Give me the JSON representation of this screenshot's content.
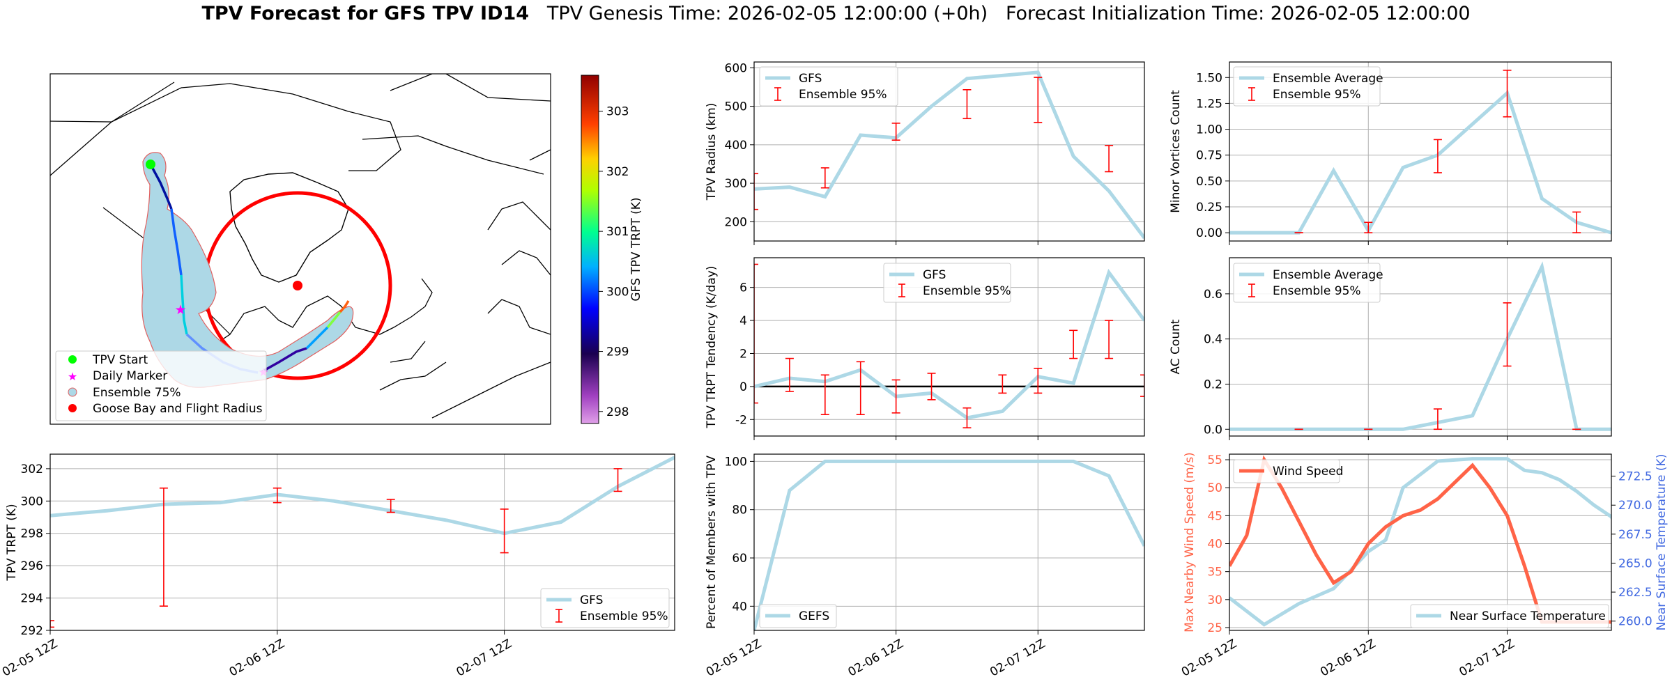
{
  "title": {
    "bold": "TPV Forecast for GFS TPV ID14",
    "genesis": "TPV Genesis Time: 2026-02-05 12:00:00 (+0h)",
    "init": "Forecast Initialization Time: 2026-02-05 12:00:00"
  },
  "colors": {
    "gfs_line": "#add8e6",
    "ensemble_err": "#ff0000",
    "wind": "#ff6347",
    "temp_axis": "#4169e1",
    "goose": "#ff0000",
    "tpv_start": "#00ff00",
    "daily_marker": "#ff00ff",
    "ensemble_fill": "#add8e6"
  },
  "map": {
    "legend": [
      "TPV Start",
      "Daily Marker",
      "Ensemble 75%",
      "Goose Bay and Flight Radius"
    ],
    "colorbar": {
      "label": "GFS TPV TRPT (K)",
      "ticks": [
        298,
        299,
        300,
        301,
        302,
        303
      ],
      "range": [
        297.8,
        303.6
      ]
    }
  },
  "chart_data": [
    {
      "id": "radius",
      "type": "line",
      "ylabel": "TPV Radius (km)",
      "legend": [
        "GFS",
        "Ensemble 95%"
      ],
      "x": [
        0,
        0.25,
        0.5,
        0.75,
        1,
        1.25,
        1.5,
        1.75,
        2,
        2.25,
        2.5,
        2.75
      ],
      "values": [
        285,
        290,
        265,
        425,
        418,
        500,
        572,
        580,
        588,
        370,
        280,
        158
      ],
      "errorbars": [
        {
          "x": 0,
          "lo": 232,
          "hi": 325
        },
        {
          "x": 0.5,
          "lo": 288,
          "hi": 340
        },
        {
          "x": 1,
          "lo": 412,
          "hi": 456
        },
        {
          "x": 1.5,
          "lo": 468,
          "hi": 543
        },
        {
          "x": 2,
          "lo": 458,
          "hi": 575
        },
        {
          "x": 2.5,
          "lo": 330,
          "hi": 398
        }
      ],
      "ylim": [
        150,
        615
      ],
      "yticks": [
        200,
        300,
        400,
        500,
        600
      ]
    },
    {
      "id": "minor",
      "type": "line",
      "ylabel": "Minor Vortices Count",
      "legend": [
        "Ensemble Average",
        "Ensemble 95%"
      ],
      "x": [
        0,
        0.25,
        0.5,
        0.75,
        1,
        1.25,
        1.5,
        1.75,
        2,
        2.25,
        2.5,
        2.75
      ],
      "values": [
        0,
        0,
        0,
        0.6,
        0.02,
        0.63,
        0.75,
        1.05,
        1.35,
        0.33,
        0.1,
        0
      ],
      "errorbars": [
        {
          "x": 0.5,
          "lo": 0,
          "hi": 0
        },
        {
          "x": 1,
          "lo": 0,
          "hi": 0.1
        },
        {
          "x": 1.5,
          "lo": 0.58,
          "hi": 0.9
        },
        {
          "x": 2,
          "lo": 1.12,
          "hi": 1.57
        },
        {
          "x": 2.5,
          "lo": 0,
          "hi": 0.2
        }
      ],
      "ylim": [
        -0.08,
        1.65
      ],
      "yticks": [
        0,
        0.25,
        0.5,
        0.75,
        1,
        1.25,
        1.5
      ],
      "yticklabels": [
        "0.00",
        "0.25",
        "0.50",
        "0.75",
        "1.00",
        "1.25",
        "1.50"
      ]
    },
    {
      "id": "tendency",
      "type": "line",
      "ylabel": "TPV TRPT Tendency (K/day)",
      "legend": [
        "GFS",
        "Ensemble 95%"
      ],
      "x": [
        0,
        0.25,
        0.5,
        0.75,
        1,
        1.25,
        1.5,
        1.75,
        2,
        2.25,
        2.5,
        2.75
      ],
      "values": [
        0,
        0.5,
        0.3,
        1.0,
        -0.6,
        -0.4,
        -1.9,
        -1.5,
        0.6,
        0.2,
        6.9,
        4.0
      ],
      "errorbars": [
        {
          "x": 0,
          "lo": -1.0,
          "hi": 7.4
        },
        {
          "x": 0.25,
          "lo": -0.3,
          "hi": 1.7
        },
        {
          "x": 0.5,
          "lo": -1.7,
          "hi": 0.7
        },
        {
          "x": 0.75,
          "lo": -1.7,
          "hi": 1.5
        },
        {
          "x": 1,
          "lo": -1.6,
          "hi": 0.4
        },
        {
          "x": 1.25,
          "lo": -0.8,
          "hi": 0.8
        },
        {
          "x": 1.5,
          "lo": -2.5,
          "hi": -1.3
        },
        {
          "x": 1.75,
          "lo": -0.4,
          "hi": 0.7
        },
        {
          "x": 2,
          "lo": -0.4,
          "hi": 1.1
        },
        {
          "x": 2.25,
          "lo": 1.7,
          "hi": 3.4
        },
        {
          "x": 2.5,
          "lo": 1.7,
          "hi": 4.0
        },
        {
          "x": 2.75,
          "lo": -0.6,
          "hi": 0.7
        }
      ],
      "ylim": [
        -3.0,
        7.8
      ],
      "yticks": [
        -2,
        0,
        2,
        4,
        6
      ],
      "zero_line": true
    },
    {
      "id": "ac",
      "type": "line",
      "ylabel": "AC Count",
      "legend": [
        "Ensemble Average",
        "Ensemble 95%"
      ],
      "x": [
        0,
        0.25,
        0.5,
        0.75,
        1,
        1.25,
        1.5,
        1.75,
        2,
        2.25,
        2.5,
        2.75
      ],
      "values": [
        0,
        0,
        0,
        0,
        0,
        0,
        0.03,
        0.06,
        0.4,
        0.72,
        0,
        0
      ],
      "errorbars": [
        {
          "x": 0.5,
          "lo": 0,
          "hi": 0
        },
        {
          "x": 1,
          "lo": 0,
          "hi": 0
        },
        {
          "x": 1.5,
          "lo": 0,
          "hi": 0.09
        },
        {
          "x": 2,
          "lo": 0.28,
          "hi": 0.56
        },
        {
          "x": 2.5,
          "lo": 0,
          "hi": 0
        }
      ],
      "ylim": [
        -0.03,
        0.76
      ],
      "yticks": [
        0,
        0.2,
        0.4,
        0.6
      ],
      "yticklabels": [
        "0.0",
        "0.2",
        "0.4",
        "0.6"
      ]
    },
    {
      "id": "trpt",
      "type": "line",
      "ylabel": "TPV TRPT (K)",
      "legend": [
        "GFS",
        "Ensemble 95%"
      ],
      "x": [
        0,
        0.25,
        0.5,
        0.75,
        1,
        1.25,
        1.5,
        1.75,
        2,
        2.25,
        2.5,
        2.75
      ],
      "values": [
        299.1,
        299.4,
        299.8,
        299.9,
        300.4,
        300.0,
        299.4,
        298.8,
        298.0,
        298.7,
        300.9,
        302.7
      ],
      "errorbars": [
        {
          "x": 0,
          "lo": 292.2,
          "hi": 292.6
        },
        {
          "x": 0.5,
          "lo": 293.5,
          "hi": 300.8
        },
        {
          "x": 1,
          "lo": 299.9,
          "hi": 300.8
        },
        {
          "x": 1.5,
          "lo": 299.3,
          "hi": 300.1
        },
        {
          "x": 2,
          "lo": 296.8,
          "hi": 299.5
        },
        {
          "x": 2.5,
          "lo": 300.6,
          "hi": 302.0
        }
      ],
      "ylim": [
        292,
        302.9
      ],
      "yticks": [
        292,
        294,
        296,
        298,
        300,
        302
      ],
      "xticks": [
        0,
        1,
        2
      ],
      "xticklabels": [
        "02-05 12Z",
        "02-06 12Z",
        "02-07 12Z"
      ]
    },
    {
      "id": "percent",
      "type": "line",
      "ylabel": "Percent of Members with TPV",
      "legend": [
        "GEFS"
      ],
      "x": [
        0,
        0.25,
        0.5,
        0.75,
        1,
        1.25,
        1.5,
        1.75,
        2,
        2.25,
        2.5,
        2.75
      ],
      "values": [
        30,
        88,
        100,
        100,
        100,
        100,
        100,
        100,
        100,
        100,
        94,
        65
      ],
      "ylim": [
        30,
        103
      ],
      "yticks": [
        40,
        60,
        80,
        100
      ],
      "xticks": [
        0,
        1,
        2
      ],
      "xticklabels": [
        "02-05 12Z",
        "02-06 12Z",
        "02-07 12Z"
      ]
    },
    {
      "id": "wind",
      "type": "line",
      "ylabel": "Max Nearby Wind Speed (m/s)",
      "y2label": "Near Surface Temperature (K)",
      "legend": [
        "Wind Speed"
      ],
      "legend2": [
        "Near Surface Temperature"
      ],
      "x": [
        0,
        0.125,
        0.25,
        0.375,
        0.5,
        0.625,
        0.75,
        0.875,
        1,
        1.125,
        1.25,
        1.375,
        1.5,
        1.625,
        1.75,
        1.875,
        2,
        2.125,
        2.25,
        2.375,
        2.5,
        2.625,
        2.75
      ],
      "values": [
        36,
        41.5,
        55,
        50,
        44,
        38,
        33,
        35,
        40,
        43,
        45,
        46,
        48,
        51,
        54,
        50,
        45,
        36,
        26,
        26,
        26,
        26,
        26
      ],
      "temperature": [
        262,
        259.7,
        261.5,
        262.8,
        266,
        267,
        271.5,
        273.8,
        274,
        274,
        273,
        272.8,
        272.2,
        271.2,
        270,
        269,
        268,
        264
      ],
      "temp_x": [
        0,
        0.25,
        0.5,
        0.75,
        1,
        1.125,
        1.25,
        1.5,
        1.75,
        2,
        2.125,
        2.25,
        2.375,
        2.5,
        2.625,
        2.75,
        2.8,
        2.9
      ],
      "ylim": [
        24.5,
        56
      ],
      "yticks": [
        25,
        30,
        35,
        40,
        45,
        50,
        55
      ],
      "y2lim": [
        259.2,
        274.4
      ],
      "y2ticks": [
        260,
        262.5,
        265,
        267.5,
        270,
        272.5
      ],
      "y2ticklabels": [
        "260.0",
        "262.5",
        "265.0",
        "267.5",
        "270.0",
        "272.5"
      ],
      "xticks": [
        0,
        1,
        2
      ],
      "xticklabels": [
        "02-05 12Z",
        "02-06 12Z",
        "02-07 12Z"
      ]
    }
  ]
}
